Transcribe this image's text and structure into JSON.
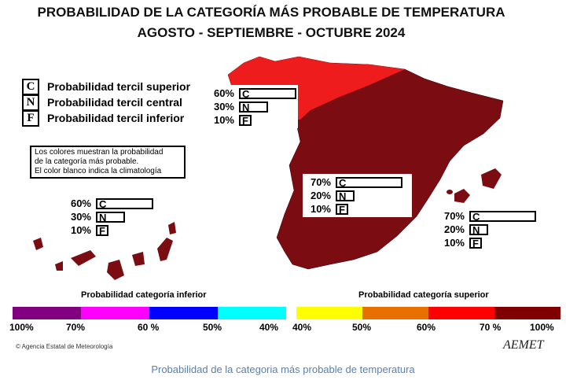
{
  "title_line1": "PROBABILIDAD DE LA CATEGORÍA MÁS PROBABLE DE TEMPERATURA",
  "title_line2": "AGOSTO - SEPTIEMBRE - OCTUBRE 2024",
  "key": [
    {
      "letter": "C",
      "label": "Probabilidad  tercil superior"
    },
    {
      "letter": "N",
      "label": "Probabilidad  tercil central"
    },
    {
      "letter": "F",
      "label": "Probabilidad  tercil inferior"
    }
  ],
  "note": [
    "Los colores muestran la probabilidad",
    "de la categoría más probable.",
    "El color blanco indica la climatología"
  ],
  "regions": [
    {
      "name": "north-coast",
      "color": "#ee1c1c",
      "probs": [
        {
          "letter": "C",
          "pct": "60%",
          "value": 60
        },
        {
          "letter": "N",
          "pct": "30%",
          "value": 30
        },
        {
          "letter": "F",
          "pct": "10%",
          "value": 10
        }
      ]
    },
    {
      "name": "peninsula",
      "color": "#7a0c12",
      "probs": [
        {
          "letter": "C",
          "pct": "70%",
          "value": 70
        },
        {
          "letter": "N",
          "pct": "20%",
          "value": 20
        },
        {
          "letter": "F",
          "pct": "10%",
          "value": 10
        }
      ]
    },
    {
      "name": "baleares",
      "color": "#7a0c12",
      "probs": [
        {
          "letter": "C",
          "pct": "70%",
          "value": 70
        },
        {
          "letter": "N",
          "pct": "20%",
          "value": 20
        },
        {
          "letter": "F",
          "pct": "10%",
          "value": 10
        }
      ]
    },
    {
      "name": "canarias",
      "color": "#7a0c12",
      "probs": [
        {
          "letter": "C",
          "pct": "60%",
          "value": 60
        },
        {
          "letter": "N",
          "pct": "30%",
          "value": 30
        },
        {
          "letter": "F",
          "pct": "10%",
          "value": 10
        }
      ]
    }
  ],
  "scale_lower": {
    "title": "Probabilidad categoría inferior",
    "colors": [
      "#800080",
      "#ff00ff",
      "#0000ff",
      "#00ffff"
    ],
    "ticks": [
      "100%",
      "70%",
      "60 %",
      "50%",
      "40%"
    ]
  },
  "scale_upper": {
    "title": "Probabilidad categoría superior",
    "colors": [
      "#ffff00",
      "#e87000",
      "#ff0000",
      "#800000"
    ],
    "ticks": [
      "40%",
      "50%",
      "60%",
      "70 %",
      "100%"
    ]
  },
  "footer": "© Agencia Estatal de Meteorología",
  "logo": "AEMET",
  "caption": "Probabilidad de la categoria más probable de temperatura"
}
